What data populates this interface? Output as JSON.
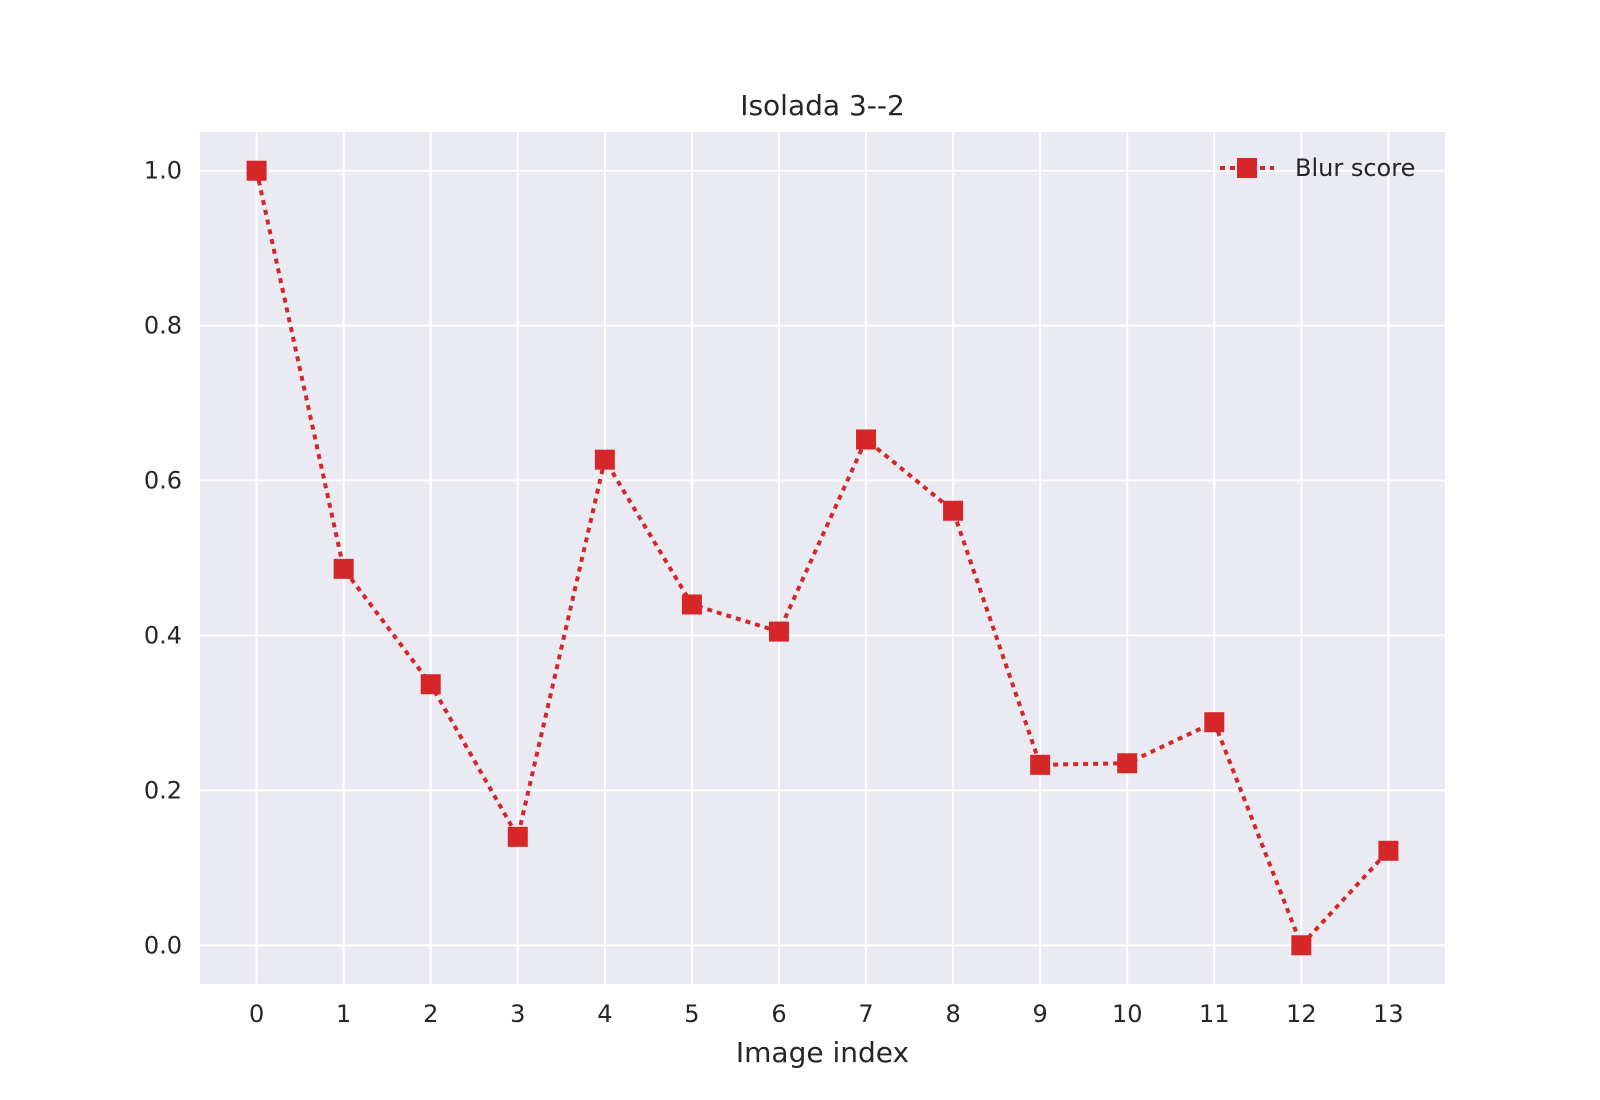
{
  "chart_data": {
    "type": "line",
    "title": "Isolada 3--2",
    "xlabel": "Image index",
    "ylabel": "",
    "x": [
      0,
      1,
      2,
      3,
      4,
      5,
      6,
      7,
      8,
      9,
      10,
      11,
      12,
      13
    ],
    "xticks": [
      "0",
      "1",
      "2",
      "3",
      "4",
      "5",
      "6",
      "7",
      "8",
      "9",
      "10",
      "11",
      "12",
      "13"
    ],
    "yticks": [
      "0.0",
      "0.2",
      "0.4",
      "0.6",
      "0.8",
      "1.0"
    ],
    "xlim": [
      -0.65,
      13.65
    ],
    "ylim": [
      -0.05,
      1.05
    ],
    "grid": true,
    "legend_position": "top-right",
    "series": [
      {
        "name": "Blur score",
        "color": "#d62728",
        "line_style": "dotted",
        "marker": "square",
        "values": [
          1.0,
          0.486,
          0.337,
          0.14,
          0.627,
          0.44,
          0.405,
          0.653,
          0.561,
          0.233,
          0.235,
          0.288,
          0.0,
          0.122
        ]
      }
    ]
  }
}
